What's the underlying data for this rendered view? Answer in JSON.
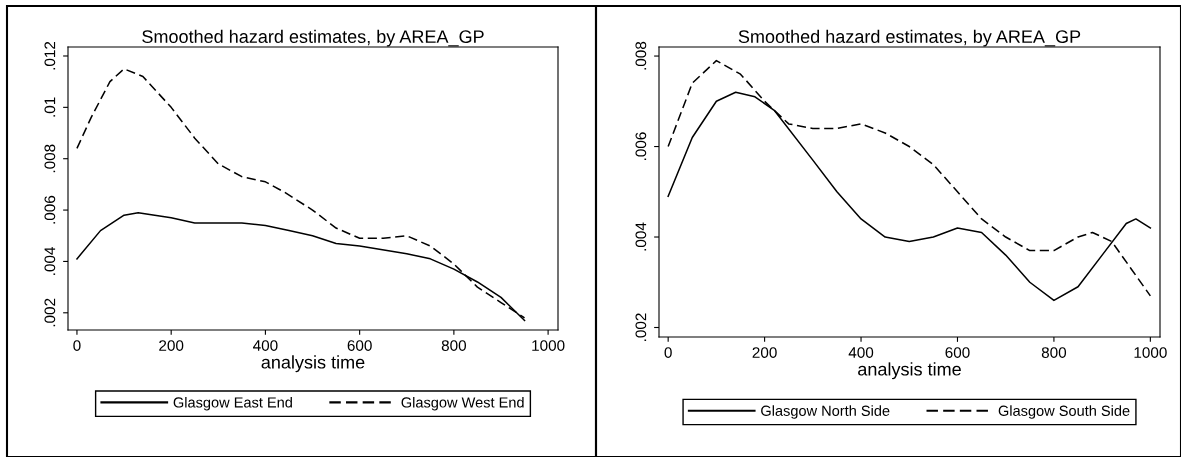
{
  "chart_data": [
    {
      "type": "line",
      "title": "Smoothed hazard estimates, by AREA_GP",
      "xlabel": "analysis time",
      "xlim": [
        -19,
        1021
      ],
      "xticks": [
        0,
        200,
        400,
        600,
        800,
        1000
      ],
      "ylim": [
        0.00133,
        0.01235
      ],
      "yticks": [
        {
          "value": 0.002,
          "label": ".002"
        },
        {
          "value": 0.004,
          "label": ".004"
        },
        {
          "value": 0.006,
          "label": ".006"
        },
        {
          "value": 0.008,
          "label": ".008"
        },
        {
          "value": 0.01,
          "label": ".01"
        },
        {
          "value": 0.012,
          "label": ".012"
        }
      ],
      "grid": false,
      "legend": "bottom",
      "series": [
        {
          "name": "Glasgow East End",
          "color": "#000000",
          "line_style": "solid",
          "x": [
            0,
            50,
            100,
            130,
            200,
            250,
            300,
            350,
            400,
            450,
            500,
            550,
            600,
            700,
            750,
            800,
            850,
            900,
            950
          ],
          "values": [
            0.0041,
            0.0052,
            0.0058,
            0.0059,
            0.0057,
            0.0055,
            0.0055,
            0.0055,
            0.0054,
            0.0052,
            0.005,
            0.0047,
            0.0046,
            0.0043,
            0.0041,
            0.0037,
            0.0032,
            0.0026,
            0.0017
          ]
        },
        {
          "name": "Glasgow West End",
          "color": "#000000",
          "line_style": "dashed",
          "x": [
            0,
            30,
            70,
            100,
            140,
            200,
            250,
            300,
            350,
            400,
            440,
            500,
            550,
            600,
            650,
            700,
            750,
            800,
            850,
            900,
            950
          ],
          "values": [
            0.0084,
            0.0096,
            0.011,
            0.0115,
            0.0112,
            0.01,
            0.0088,
            0.0078,
            0.0073,
            0.0071,
            0.0067,
            0.006,
            0.0053,
            0.0049,
            0.0049,
            0.005,
            0.0046,
            0.0039,
            0.003,
            0.0024,
            0.0018
          ]
        }
      ]
    },
    {
      "type": "line",
      "title": "Smoothed hazard estimates, by AREA_GP",
      "xlabel": "analysis time",
      "xlim": [
        -19,
        1020
      ],
      "xticks": [
        0,
        200,
        400,
        600,
        800,
        1000
      ],
      "ylim": [
        0.00179,
        0.0082
      ],
      "yticks": [
        {
          "value": 0.002,
          "label": ".002"
        },
        {
          "value": 0.004,
          "label": ".004"
        },
        {
          "value": 0.006,
          "label": ".006"
        },
        {
          "value": 0.008,
          "label": ".008"
        }
      ],
      "grid": false,
      "legend": "bottom",
      "series": [
        {
          "name": "Glasgow North Side",
          "color": "#000000",
          "line_style": "solid",
          "x": [
            0,
            50,
            100,
            140,
            180,
            220,
            300,
            350,
            400,
            450,
            500,
            550,
            600,
            650,
            700,
            750,
            800,
            850,
            900,
            950,
            970,
            1000
          ],
          "values": [
            0.0049,
            0.0062,
            0.007,
            0.0072,
            0.0071,
            0.0068,
            0.0057,
            0.005,
            0.0044,
            0.004,
            0.0039,
            0.004,
            0.0042,
            0.0041,
            0.0036,
            0.003,
            0.0026,
            0.0029,
            0.0036,
            0.0043,
            0.0044,
            0.0042
          ]
        },
        {
          "name": "Glasgow South Side",
          "color": "#000000",
          "line_style": "dashed",
          "x": [
            0,
            50,
            100,
            150,
            200,
            250,
            300,
            350,
            400,
            450,
            500,
            550,
            600,
            650,
            700,
            750,
            800,
            850,
            880,
            920,
            960,
            1000
          ],
          "values": [
            0.006,
            0.0074,
            0.0079,
            0.0076,
            0.007,
            0.0065,
            0.0064,
            0.0064,
            0.0065,
            0.0063,
            0.006,
            0.0056,
            0.005,
            0.0044,
            0.004,
            0.0037,
            0.0037,
            0.004,
            0.0041,
            0.0039,
            0.0033,
            0.0027
          ]
        }
      ]
    }
  ]
}
